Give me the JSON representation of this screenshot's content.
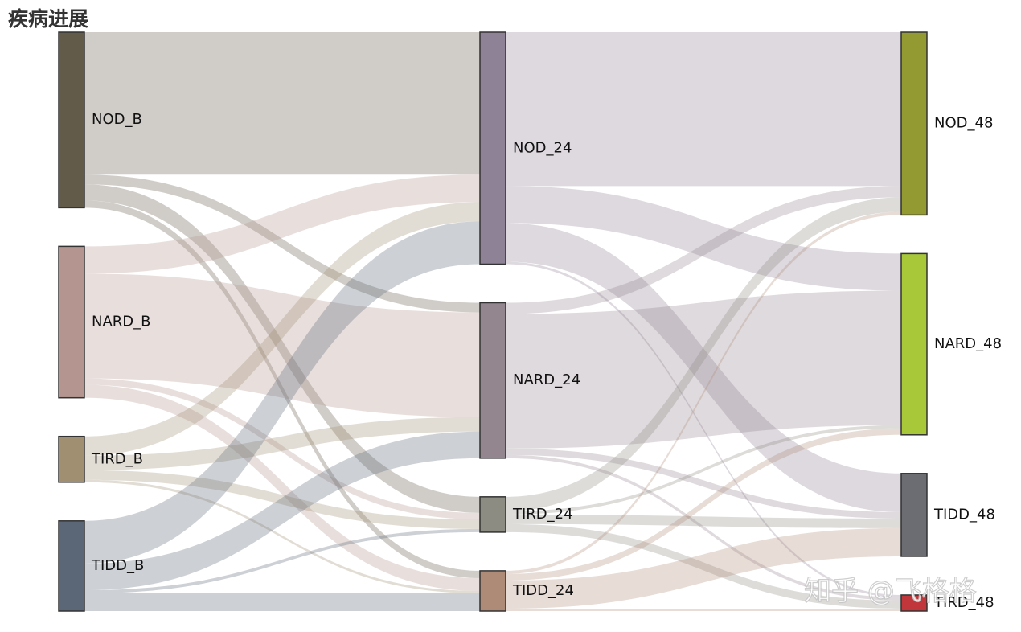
{
  "chart_data": {
    "type": "sankey",
    "title": "疾病进展",
    "watermark": "知乎 @飞格格",
    "nodes": [
      {
        "name": "NOD_B",
        "color": "#625b4a"
      },
      {
        "name": "NARD_B",
        "color": "#b4958f"
      },
      {
        "name": "TIRD_B",
        "color": "#a08f70"
      },
      {
        "name": "TIDD_B",
        "color": "#5b6776"
      },
      {
        "name": "NOD_24",
        "color": "#8e8296"
      },
      {
        "name": "NARD_24",
        "color": "#94868f"
      },
      {
        "name": "TIRD_24",
        "color": "#8d8c82"
      },
      {
        "name": "TIDD_24",
        "color": "#ae8b76"
      },
      {
        "name": "NOD_48",
        "color": "#939a31"
      },
      {
        "name": "NARD_48",
        "color": "#a8c83a"
      },
      {
        "name": "TIDD_48",
        "color": "#6b6d72"
      },
      {
        "name": "TIRD_48",
        "color": "#c0363a"
      }
    ],
    "links": [
      {
        "source": 0,
        "target": 4,
        "value": 177
      },
      {
        "source": 0,
        "target": 5,
        "value": 12
      },
      {
        "source": 0,
        "target": 6,
        "value": 20
      },
      {
        "source": 0,
        "target": 7,
        "value": 9
      },
      {
        "source": 1,
        "target": 4,
        "value": 34
      },
      {
        "source": 1,
        "target": 5,
        "value": 130
      },
      {
        "source": 1,
        "target": 6,
        "value": 8
      },
      {
        "source": 1,
        "target": 7,
        "value": 16
      },
      {
        "source": 2,
        "target": 4,
        "value": 24
      },
      {
        "source": 2,
        "target": 5,
        "value": 18
      },
      {
        "source": 2,
        "target": 6,
        "value": 12
      },
      {
        "source": 2,
        "target": 7,
        "value": 3
      },
      {
        "source": 3,
        "target": 4,
        "value": 53
      },
      {
        "source": 3,
        "target": 5,
        "value": 33
      },
      {
        "source": 3,
        "target": 6,
        "value": 4
      },
      {
        "source": 3,
        "target": 7,
        "value": 22
      },
      {
        "source": 4,
        "target": 8,
        "value": 191
      },
      {
        "source": 4,
        "target": 9,
        "value": 46
      },
      {
        "source": 4,
        "target": 10,
        "value": 48
      },
      {
        "source": 4,
        "target": 11,
        "value": 3
      },
      {
        "source": 5,
        "target": 8,
        "value": 14
      },
      {
        "source": 5,
        "target": 9,
        "value": 167
      },
      {
        "source": 5,
        "target": 10,
        "value": 8
      },
      {
        "source": 5,
        "target": 11,
        "value": 4
      },
      {
        "source": 6,
        "target": 8,
        "value": 18
      },
      {
        "source": 6,
        "target": 9,
        "value": 4
      },
      {
        "source": 6,
        "target": 10,
        "value": 12
      },
      {
        "source": 6,
        "target": 11,
        "value": 10
      },
      {
        "source": 7,
        "target": 8,
        "value": 4
      },
      {
        "source": 7,
        "target": 9,
        "value": 8
      },
      {
        "source": 7,
        "target": 10,
        "value": 35
      },
      {
        "source": 7,
        "target": 11,
        "value": 3
      }
    ]
  }
}
